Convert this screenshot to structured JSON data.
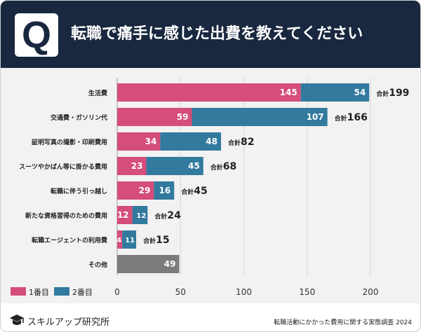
{
  "header": {
    "badge": "Q",
    "title": "転職で痛手に感じた出費を教えてください"
  },
  "chart_data": {
    "type": "bar",
    "orientation": "horizontal",
    "stacked": true,
    "categories": [
      "生活費",
      "交通費・ガソリン代",
      "証明写真の撮影・印刷費用",
      "スーツやかばん等に掛かる費用",
      "転職に伴う引っ越し",
      "新たな資格習得のための費用",
      "転職エージェントの利用費",
      "その他"
    ],
    "series": [
      {
        "name": "1番目",
        "color": "#d44d7b",
        "values": [
          145,
          59,
          34,
          23,
          29,
          12,
          4,
          null
        ]
      },
      {
        "name": "2番目",
        "color": "#327a9e",
        "values": [
          54,
          107,
          48,
          45,
          16,
          12,
          11,
          null
        ]
      }
    ],
    "other": {
      "category": "その他",
      "value": 49,
      "color": "#7b7b7b"
    },
    "totals": [
      199,
      166,
      82,
      68,
      45,
      24,
      15,
      null
    ],
    "total_prefix": "合計",
    "xlim": [
      0,
      200
    ],
    "xticks": [
      0,
      50,
      100,
      150,
      200
    ],
    "legend": {
      "position": "bottom-left",
      "entries": [
        "1番目",
        "2番目"
      ]
    },
    "grid": true
  },
  "footer": {
    "logo_text": "スキルアップ研究所",
    "note": "転職活動にかかった費用に関する実態調査 2024"
  }
}
